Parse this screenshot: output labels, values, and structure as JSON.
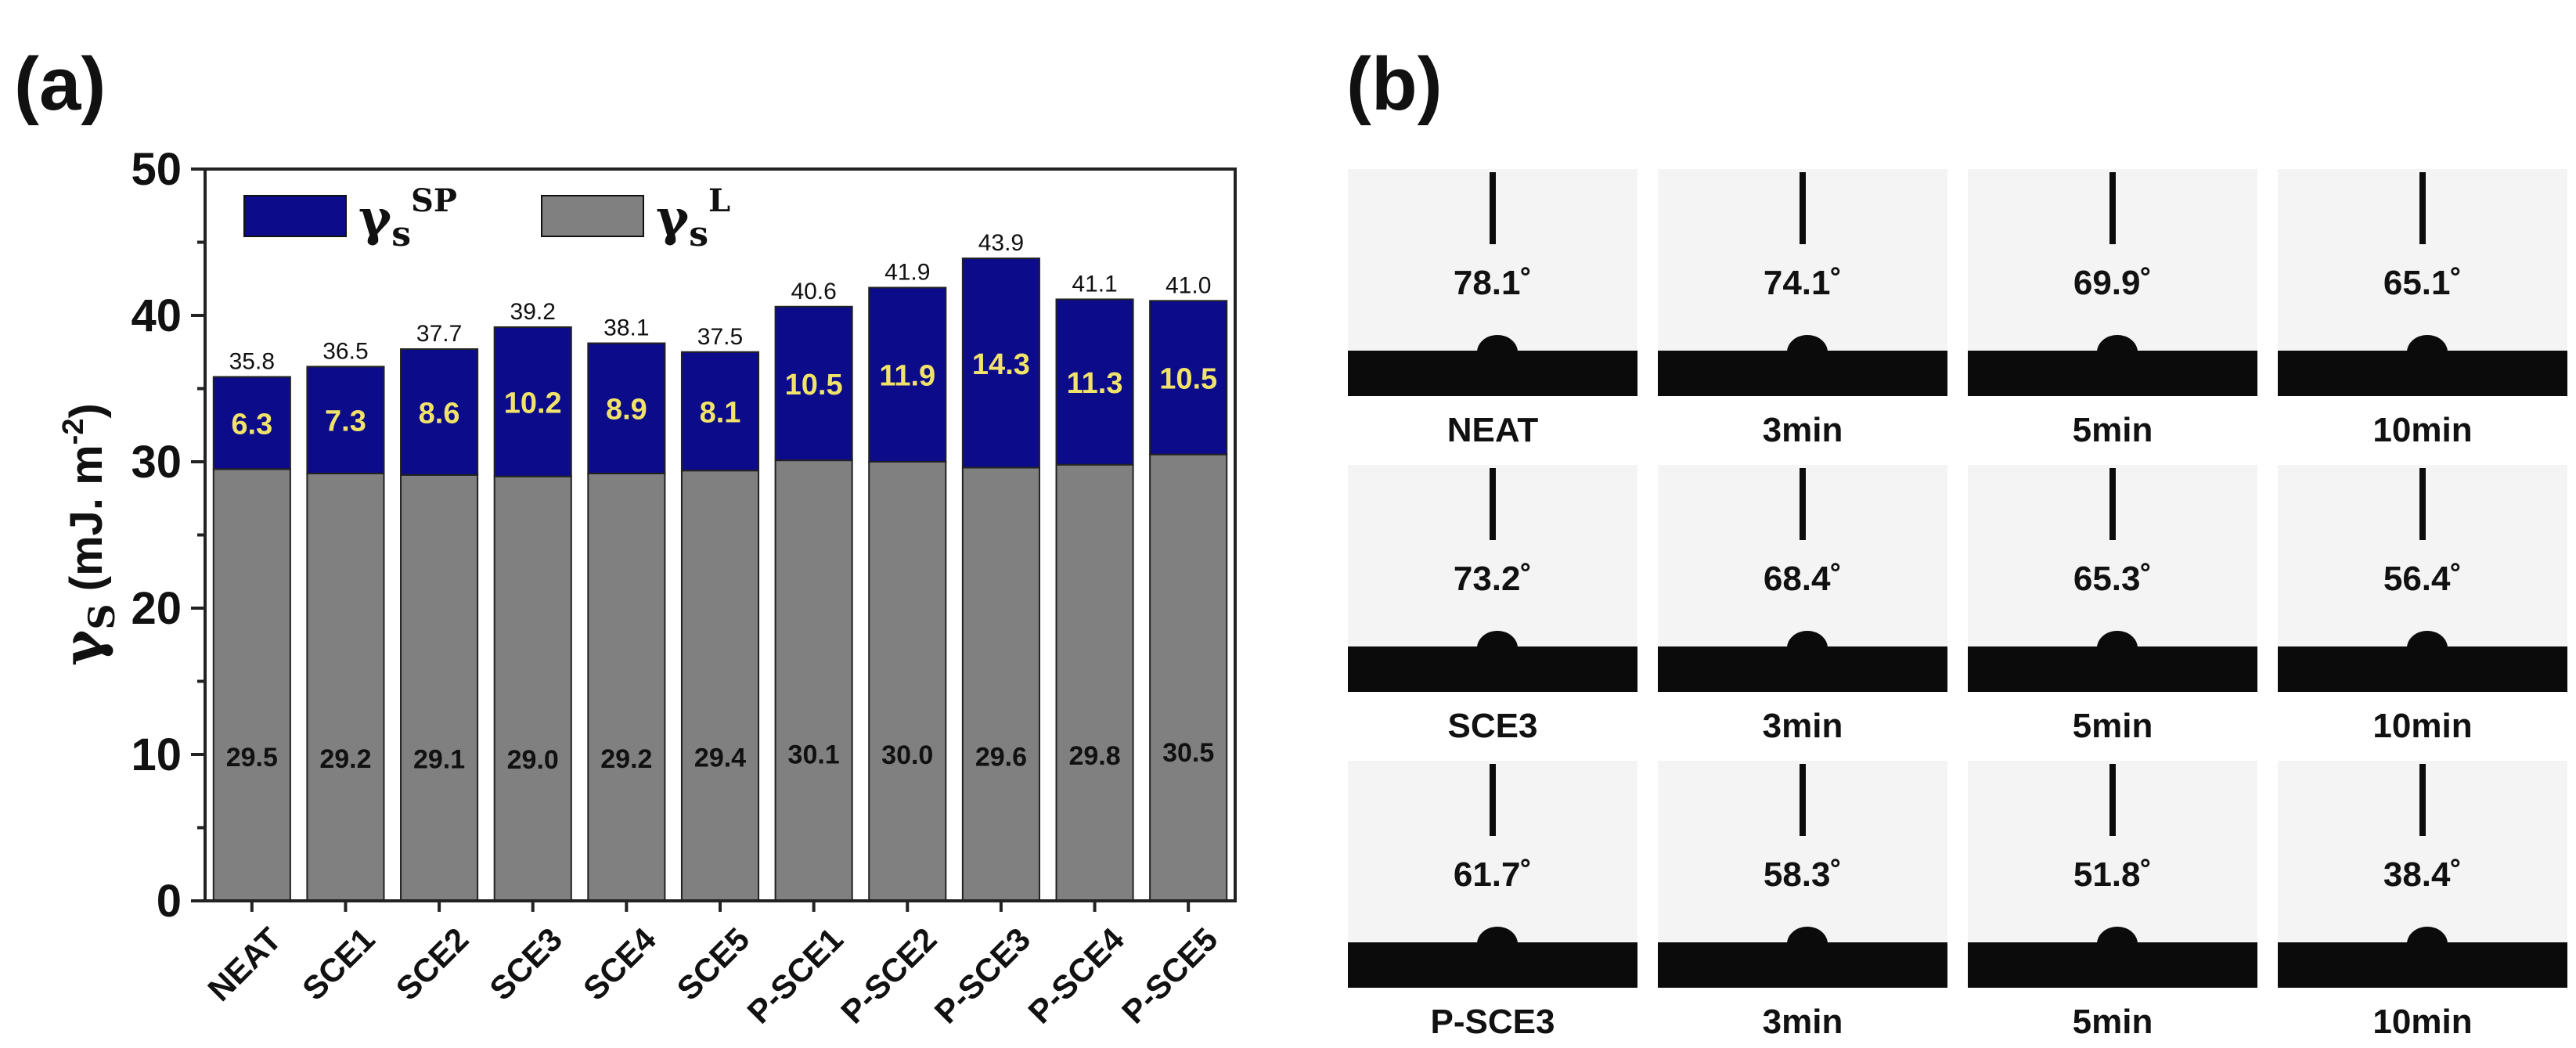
{
  "panel_a_label": "(a)",
  "panel_b_label": "(b)",
  "chart_data": {
    "type": "bar",
    "stacked": true,
    "title": "",
    "xlabel": "",
    "ylabel": "γS (mJ. m⁻²)",
    "ylabel_main": "γ",
    "ylabel_sub": "S",
    "ylabel_units": " (mJ. m",
    "ylabel_exp": "-2",
    "ylabel_close": ")",
    "ylim": [
      0,
      50
    ],
    "yticks": [
      0,
      10,
      20,
      30,
      40,
      50
    ],
    "grid": false,
    "legend_position": "top-left",
    "categories": [
      "NEAT",
      "SCE1",
      "SCE2",
      "SCE3",
      "SCE4",
      "SCE5",
      "P-SCE1",
      "P-SCE2",
      "P-SCE3",
      "P-SCE4",
      "P-SCE5"
    ],
    "series": [
      {
        "name": "γS L",
        "legend_main": "γ",
        "legend_sub": "s",
        "legend_sup": "L",
        "color": "#808080",
        "values": [
          29.5,
          29.2,
          29.1,
          29.0,
          29.2,
          29.4,
          30.1,
          30.0,
          29.6,
          29.8,
          30.5
        ]
      },
      {
        "name": "γS SP",
        "legend_main": "γ",
        "legend_sub": "s",
        "legend_sup": "SP",
        "color": "#0c0c8a",
        "values": [
          6.3,
          7.3,
          8.6,
          10.2,
          8.9,
          8.1,
          10.5,
          11.9,
          14.3,
          11.3,
          10.5
        ]
      }
    ],
    "totals": [
      35.8,
      36.5,
      37.7,
      39.2,
      38.1,
      37.5,
      40.6,
      41.9,
      43.9,
      41.1,
      41.0
    ]
  },
  "contact_angle_grid": [
    {
      "row": "NEAT",
      "cells": [
        {
          "angle": "78.1˚",
          "caption": "NEAT"
        },
        {
          "angle": "74.1˚",
          "caption": "3min"
        },
        {
          "angle": "69.9˚",
          "caption": "5min"
        },
        {
          "angle": "65.1˚",
          "caption": "10min"
        }
      ]
    },
    {
      "row": "SCE3",
      "cells": [
        {
          "angle": "73.2˚",
          "caption": "SCE3"
        },
        {
          "angle": "68.4˚",
          "caption": "3min"
        },
        {
          "angle": "65.3˚",
          "caption": "5min"
        },
        {
          "angle": "56.4˚",
          "caption": "10min"
        }
      ]
    },
    {
      "row": "P-SCE3",
      "cells": [
        {
          "angle": "61.7˚",
          "caption": "P-SCE3"
        },
        {
          "angle": "58.3˚",
          "caption": "3min"
        },
        {
          "angle": "51.8˚",
          "caption": "5min"
        },
        {
          "angle": "38.4˚",
          "caption": "10min"
        }
      ]
    }
  ]
}
